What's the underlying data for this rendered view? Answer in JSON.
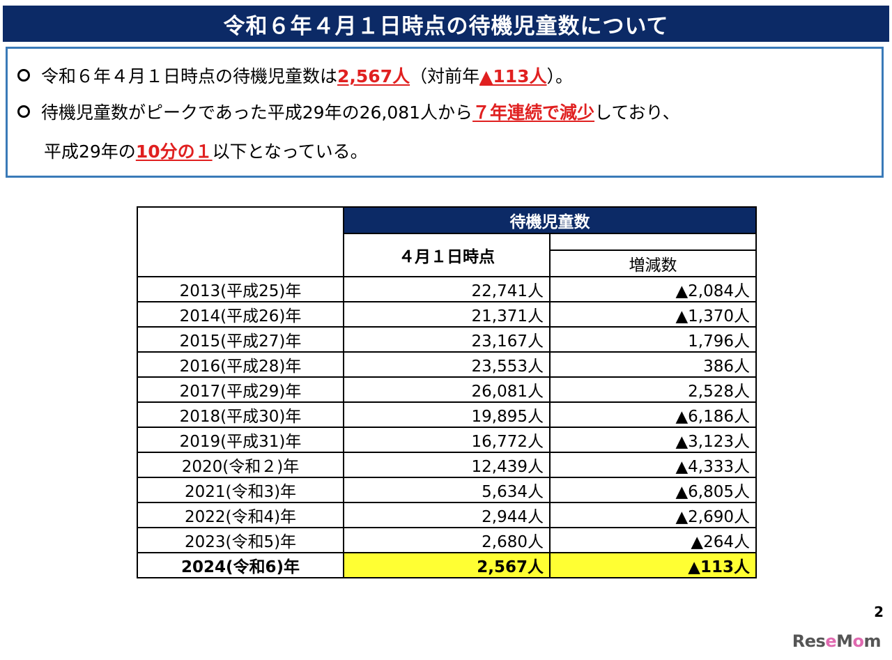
{
  "title": "令和６年４月１日時点の待機児童数について",
  "summary": {
    "line1_pre": "令和６年４月１日時点の待機児童数は",
    "line1_red1": "2,567人",
    "line1_mid": "（対前年",
    "line1_red2": "▲113人",
    "line1_post": "）。",
    "line2_pre": "待機児童数がピークであった平成29年の26,081人から",
    "line2_red": "７年連続で減少",
    "line2_post": "しており、",
    "line3_pre": "平成29年の",
    "line3_red": "10分の１",
    "line3_post": "以下となっている。"
  },
  "table": {
    "header_group": "待機児童数",
    "header_count": "４月１日時点",
    "header_change": "増減数",
    "rows": [
      {
        "year": "2013(平成25)年",
        "count": "22,741人",
        "change": "▲2,084人"
      },
      {
        "year": "2014(平成26)年",
        "count": "21,371人",
        "change": "▲1,370人"
      },
      {
        "year": "2015(平成27)年",
        "count": "23,167人",
        "change": "1,796人"
      },
      {
        "year": "2016(平成28)年",
        "count": "23,553人",
        "change": "386人"
      },
      {
        "year": "2017(平成29)年",
        "count": "26,081人",
        "change": "2,528人"
      },
      {
        "year": "2018(平成30)年",
        "count": "19,895人",
        "change": "▲6,186人"
      },
      {
        "year": "2019(平成31)年",
        "count": "16,772人",
        "change": "▲3,123人"
      },
      {
        "year": "2020(令和２)年",
        "count": "12,439人",
        "change": "▲4,333人"
      },
      {
        "year": "2021(令和3)年",
        "count": "5,634人",
        "change": "▲6,805人"
      },
      {
        "year": "2022(令和4)年",
        "count": "2,944人",
        "change": "▲2,690人"
      },
      {
        "year": "2023(令和5)年",
        "count": "2,680人",
        "change": "▲264人"
      },
      {
        "year": "2024(令和6)年",
        "count": "2,567人",
        "change": "▲113人"
      }
    ]
  },
  "page_number": "2",
  "logo": {
    "part1": "Res",
    "part2": "e",
    "part3": "M",
    "part4": "o",
    "part5": "m"
  },
  "colors": {
    "navy": "#0c2a66",
    "border_blue": "#3a7ab8",
    "red": "#e02020",
    "highlight": "#ffff33"
  }
}
